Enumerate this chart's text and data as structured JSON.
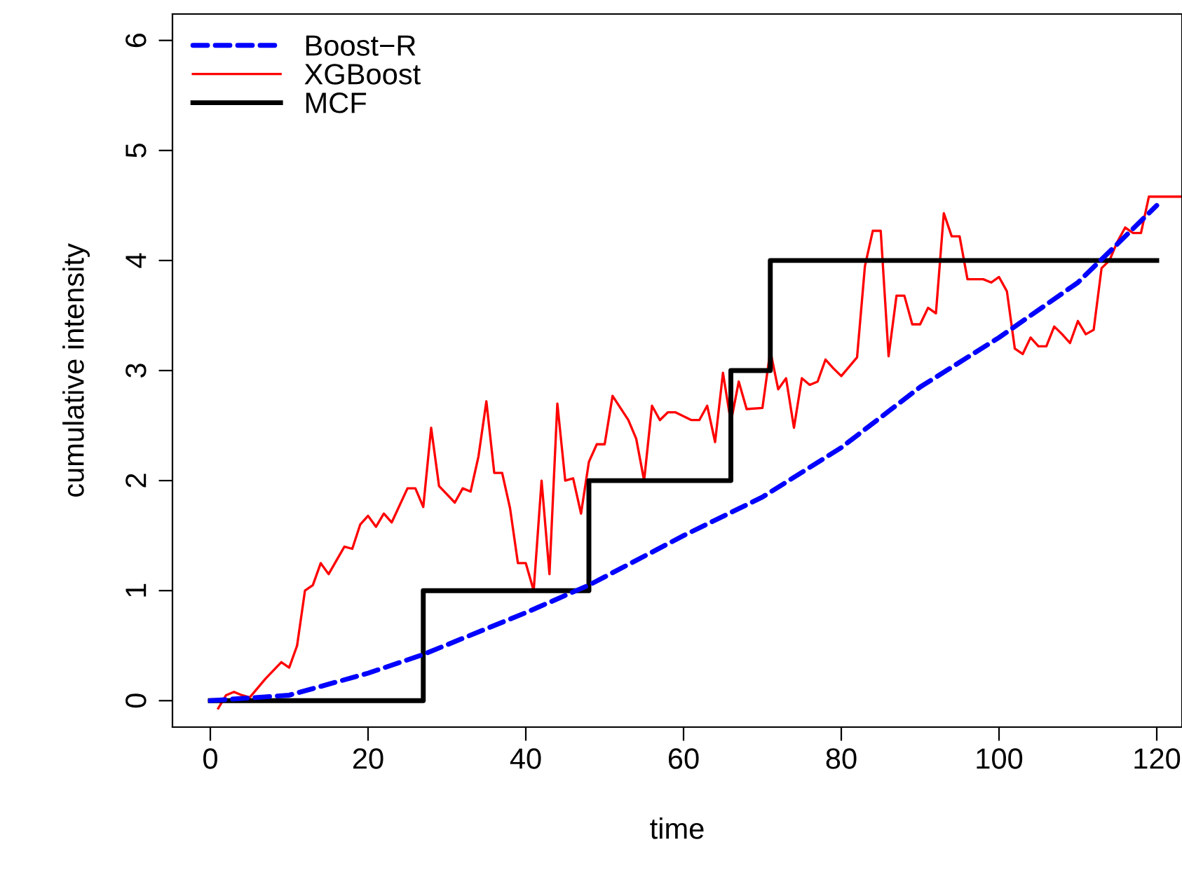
{
  "chart_data": {
    "type": "line",
    "xlabel": "time",
    "ylabel": "cumulative intensity",
    "xlim": [
      -4.8,
      123.2
    ],
    "ylim": [
      -0.24,
      6.24
    ],
    "xticks": [
      0,
      20,
      40,
      60,
      80,
      100,
      120
    ],
    "yticks": [
      0,
      1,
      2,
      3,
      4,
      5,
      6
    ],
    "grid": false,
    "legend": "top left",
    "series": [
      {
        "name": "Boost−R",
        "color": "#0000ff",
        "line_style": "dashed",
        "x": [
          0,
          10,
          20,
          27,
          40,
          48,
          60,
          70,
          80,
          90,
          100,
          110,
          120
        ],
        "values": [
          0,
          0.05,
          0.25,
          0.42,
          0.8,
          1.05,
          1.5,
          1.85,
          2.3,
          2.85,
          3.3,
          3.8,
          4.5
        ]
      },
      {
        "name": "XGBoost",
        "color": "#ff0000",
        "line_style": "solid",
        "x": [
          1,
          2,
          3,
          4,
          5,
          7,
          9,
          10,
          11,
          12,
          13,
          14,
          15,
          17,
          18,
          19,
          20,
          21,
          22,
          23,
          25,
          26,
          27,
          28,
          29,
          31,
          32,
          33,
          34,
          35,
          36,
          37,
          38,
          39,
          40,
          41,
          42,
          43,
          44,
          45,
          46,
          47,
          48,
          49,
          50,
          51,
          53,
          54,
          55,
          56,
          57,
          58,
          59,
          61,
          62,
          63,
          64,
          65,
          66,
          67,
          68,
          70,
          71,
          72,
          73,
          74,
          75,
          76,
          77,
          78,
          79,
          80,
          82,
          83,
          84,
          85,
          86,
          87,
          88,
          89,
          90,
          91,
          92,
          93,
          94,
          95,
          96,
          98,
          99,
          100,
          101,
          102,
          103,
          104,
          105,
          106,
          107,
          108,
          109,
          110,
          111,
          112,
          113,
          114,
          115,
          116,
          117,
          118,
          119,
          123
        ],
        "values": [
          -0.07,
          0.05,
          0.08,
          0.05,
          0.03,
          0.2,
          0.35,
          0.3,
          0.5,
          1.0,
          1.05,
          1.25,
          1.15,
          1.4,
          1.38,
          1.6,
          1.68,
          1.58,
          1.7,
          1.62,
          1.93,
          1.93,
          1.76,
          2.48,
          1.95,
          1.8,
          1.93,
          1.9,
          2.22,
          2.72,
          2.07,
          2.07,
          1.75,
          1.25,
          1.25,
          1.0,
          2.0,
          1.15,
          2.7,
          2.0,
          2.02,
          1.7,
          2.17,
          2.33,
          2.33,
          2.77,
          2.55,
          2.38,
          2.0,
          2.68,
          2.55,
          2.62,
          2.62,
          2.55,
          2.55,
          2.68,
          2.35,
          2.98,
          2.53,
          2.9,
          2.65,
          2.66,
          3.18,
          2.83,
          2.93,
          2.48,
          2.93,
          2.87,
          2.9,
          3.1,
          3.02,
          2.95,
          3.12,
          3.95,
          4.27,
          4.27,
          3.13,
          3.68,
          3.68,
          3.42,
          3.42,
          3.57,
          3.52,
          4.43,
          4.22,
          4.22,
          3.83,
          3.83,
          3.8,
          3.85,
          3.72,
          3.2,
          3.15,
          3.3,
          3.22,
          3.22,
          3.4,
          3.33,
          3.25,
          3.45,
          3.33,
          3.37,
          3.93,
          4.0,
          4.17,
          4.3,
          4.25,
          4.25,
          4.58,
          4.58
        ]
      },
      {
        "name": "MCF",
        "color": "#000000",
        "type": "step",
        "line_style": "solid",
        "x": [
          0,
          27,
          48,
          66,
          71,
          120
        ],
        "values": [
          0,
          1,
          2,
          3,
          4,
          4
        ]
      }
    ]
  }
}
